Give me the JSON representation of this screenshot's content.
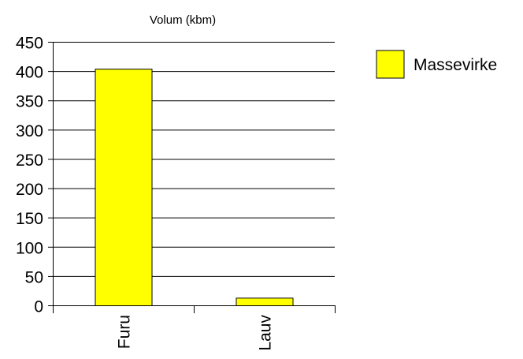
{
  "chart_data": {
    "type": "bar",
    "title": "Volum (kbm)",
    "categories": [
      "Furu",
      "Lauv"
    ],
    "series": [
      {
        "name": "Massevirke",
        "values": [
          404,
          13
        ]
      }
    ],
    "ylim": [
      0,
      450
    ],
    "yticks": [
      0,
      50,
      100,
      150,
      200,
      250,
      300,
      350,
      400,
      450
    ],
    "grid": true,
    "legend": "right",
    "colors": {
      "bar": "#ffff00",
      "bar_stroke": "#000000",
      "grid": "#000000",
      "axis": "#000000"
    }
  }
}
